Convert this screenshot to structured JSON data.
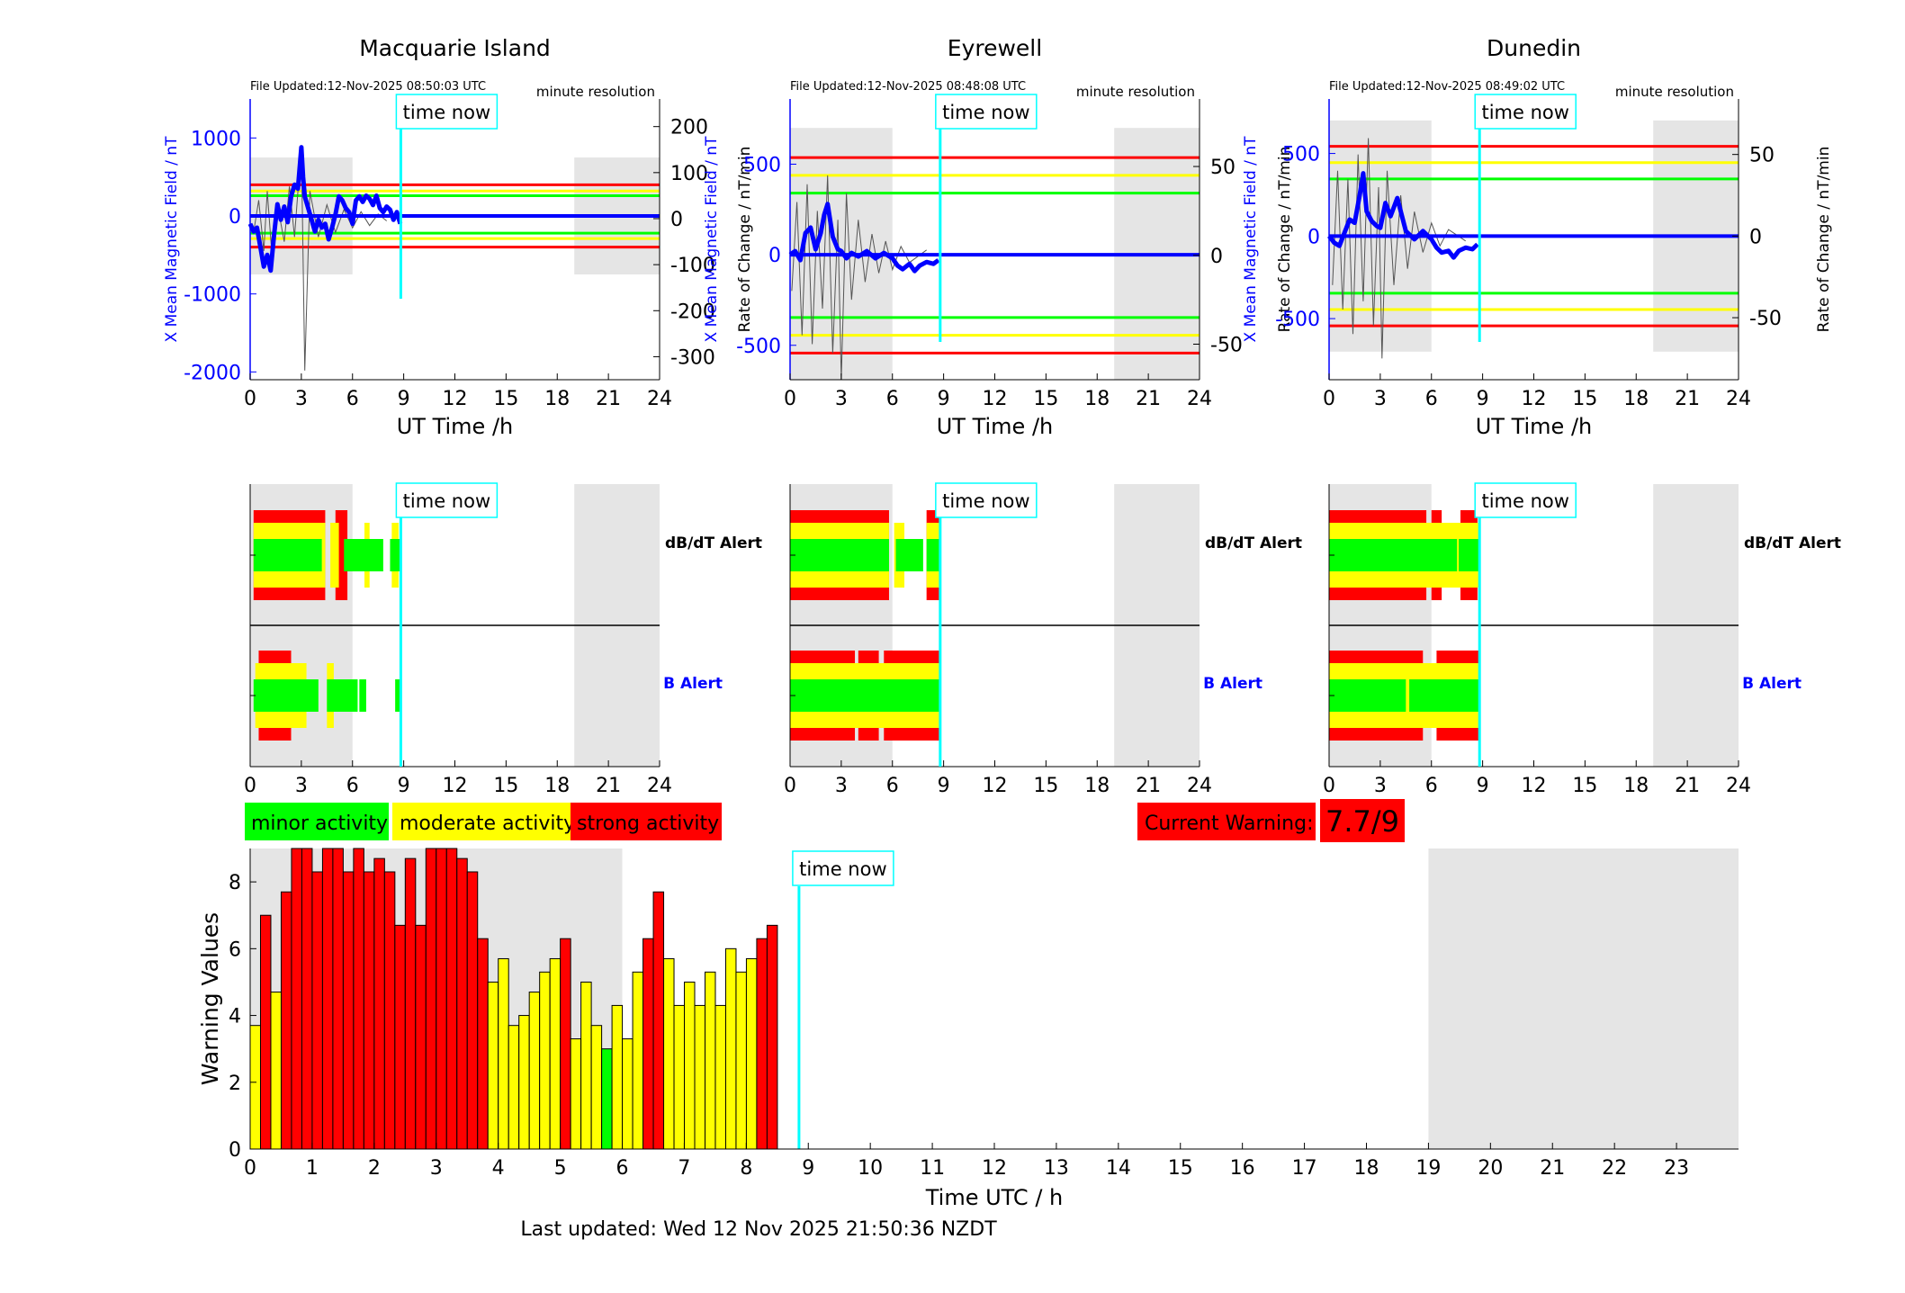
{
  "colors": {
    "minor": "#00ff00",
    "moderate": "#ffff00",
    "strong": "#ff0000",
    "time_now": "#00ffff",
    "mean_field": "#0000ff",
    "night": "#e5e5e5",
    "b_alert_label": "#0000ff"
  },
  "common": {
    "file_prefix": "File Updated:",
    "resolution": "minute resolution",
    "time_now_label": "time now",
    "xlabel": "UT Time /h",
    "left_ylabel": "X Mean Magnetic Field / nT",
    "right_ylabel": "Rate of Change / nT/min",
    "dbdt_alert": "dB/dT Alert",
    "b_alert": "B Alert",
    "hour_ticks": [
      "0",
      "3",
      "6",
      "9",
      "12",
      "15",
      "18",
      "21",
      "24"
    ]
  },
  "chart_data": [
    {
      "type": "line",
      "title": "Macquarie Island",
      "file_updated": "12-Nov-2025 08:50:03 UTC",
      "left_ticks": [
        "1000",
        "0",
        "-1000",
        "-2000"
      ],
      "left_tick_values": [
        1000,
        0,
        -1000,
        -2000
      ],
      "ylim_left": [
        -2100,
        1500
      ],
      "right_ticks": [
        "200",
        "100",
        "0",
        "-100",
        "-200",
        "-300"
      ],
      "right_tick_values": [
        200,
        100,
        0,
        -100,
        -200,
        -300
      ],
      "ylim_right": [
        -350,
        260
      ],
      "xlim": [
        0,
        24
      ],
      "night_bands": [
        [
          0,
          6
        ],
        [
          19,
          24
        ]
      ],
      "night_yrange_left": [
        -750,
        750
      ],
      "threshold_lines": [
        {
          "color": "#ff0000",
          "value": 400
        },
        {
          "color": "#ffff00",
          "value": 320
        },
        {
          "color": "#00ff00",
          "value": 260
        },
        {
          "color": "#00ff00",
          "value": -220
        },
        {
          "color": "#ffff00",
          "value": -290
        },
        {
          "color": "#ff0000",
          "value": -400
        }
      ],
      "mean_field_series": {
        "x": [
          0,
          0.2,
          0.4,
          0.6,
          0.8,
          1.0,
          1.2,
          1.4,
          1.6,
          1.8,
          2.0,
          2.2,
          2.4,
          2.6,
          2.8,
          3.0,
          3.1,
          3.2,
          3.4,
          3.6,
          3.8,
          4.0,
          4.2,
          4.4,
          4.6,
          4.8,
          5.0,
          5.2,
          5.4,
          5.6,
          5.8,
          6.0,
          6.2,
          6.4,
          6.6,
          6.8,
          7.0,
          7.2,
          7.4,
          7.6,
          7.8,
          8.0,
          8.2,
          8.4,
          8.6,
          8.8
        ],
        "y": [
          -100,
          -200,
          -150,
          -400,
          -650,
          -500,
          -700,
          -250,
          150,
          -50,
          120,
          -80,
          250,
          400,
          350,
          880,
          500,
          250,
          100,
          -50,
          -200,
          -50,
          -150,
          -100,
          -300,
          -150,
          20,
          250,
          200,
          100,
          50,
          -100,
          200,
          250,
          180,
          260,
          220,
          140,
          260,
          100,
          50,
          120,
          80,
          -50,
          50,
          -100
        ]
      },
      "rate_series": {
        "x": [
          0.2,
          0.5,
          0.8,
          1.0,
          1.3,
          1.6,
          2.0,
          2.3,
          2.6,
          3.0,
          3.2,
          3.5,
          4.0,
          4.5,
          5.0,
          5.5,
          6.0,
          6.5,
          7.0,
          7.5,
          8.0
        ],
        "y": [
          -30,
          40,
          -70,
          60,
          -90,
          30,
          -50,
          70,
          -40,
          160,
          -330,
          60,
          -40,
          30,
          -30,
          20,
          -20,
          15,
          -15,
          10,
          -5
        ]
      },
      "time_now_hour": 8.83
    },
    {
      "type": "line",
      "title": "Eyrewell",
      "file_updated": "12-Nov-2025 08:48:08 UTC",
      "left_ticks": [
        "500",
        "0",
        "-500"
      ],
      "left_tick_values": [
        500,
        0,
        -500
      ],
      "ylim_left": [
        -690,
        860
      ],
      "right_ticks": [
        "50",
        "0",
        "-50"
      ],
      "right_tick_values": [
        50,
        0,
        -50
      ],
      "ylim_right": [
        -70,
        88
      ],
      "xlim": [
        0,
        24
      ],
      "night_bands": [
        [
          0,
          6
        ],
        [
          19,
          24
        ]
      ],
      "night_yrange_left": [
        -690,
        700
      ],
      "threshold_lines": [
        {
          "color": "#ff0000",
          "value": 55
        },
        {
          "color": "#ffff00",
          "value": 45
        },
        {
          "color": "#00ff00",
          "value": 35
        },
        {
          "color": "#00ff00",
          "value": -35
        },
        {
          "color": "#ffff00",
          "value": -45
        },
        {
          "color": "#ff0000",
          "value": -55
        }
      ],
      "mean_field_series": {
        "x": [
          0,
          0.3,
          0.6,
          0.9,
          1.2,
          1.5,
          1.8,
          2.0,
          2.2,
          2.5,
          2.8,
          3.0,
          3.3,
          3.6,
          4.0,
          4.5,
          5.0,
          5.5,
          6.0,
          6.3,
          6.6,
          7.0,
          7.3,
          7.6,
          8.0,
          8.4,
          8.7
        ],
        "y": [
          0,
          20,
          -30,
          120,
          150,
          30,
          120,
          220,
          280,
          100,
          30,
          20,
          -20,
          10,
          -10,
          20,
          -20,
          10,
          -20,
          -60,
          -80,
          -50,
          -90,
          -60,
          -40,
          -50,
          -30
        ]
      },
      "rate_series": {
        "x": [
          0.1,
          0.4,
          0.7,
          1.0,
          1.3,
          1.6,
          1.9,
          2.2,
          2.5,
          2.8,
          3.0,
          3.3,
          3.6,
          4.0,
          4.4,
          4.8,
          5.2,
          5.6,
          6.0,
          6.5,
          7.0,
          8.0
        ],
        "y": [
          -20,
          30,
          -45,
          40,
          -50,
          25,
          -30,
          45,
          -55,
          20,
          -70,
          35,
          -25,
          20,
          -15,
          12,
          -10,
          8,
          -8,
          5,
          -4,
          3
        ]
      },
      "time_now_hour": 8.8
    },
    {
      "type": "line",
      "title": "Dunedin",
      "file_updated": "12-Nov-2025 08:49:02 UTC",
      "left_ticks": [
        "500",
        "0",
        "-500"
      ],
      "left_tick_values": [
        500,
        0,
        -500
      ],
      "ylim_left": [
        -870,
        830
      ],
      "right_ticks": [
        "50",
        "0",
        "-50"
      ],
      "right_tick_values": [
        50,
        0,
        -50
      ],
      "ylim_right": [
        -88,
        84
      ],
      "xlim": [
        0,
        24
      ],
      "night_bands": [
        [
          0,
          6
        ],
        [
          19,
          24
        ]
      ],
      "night_yrange_left": [
        -700,
        700
      ],
      "threshold_lines": [
        {
          "color": "#ff0000",
          "value": 55
        },
        {
          "color": "#ffff00",
          "value": 45
        },
        {
          "color": "#00ff00",
          "value": 35
        },
        {
          "color": "#00ff00",
          "value": -35
        },
        {
          "color": "#ffff00",
          "value": -45
        },
        {
          "color": "#ff0000",
          "value": -55
        }
      ],
      "mean_field_series": {
        "x": [
          0,
          0.3,
          0.6,
          0.9,
          1.2,
          1.5,
          1.8,
          2.0,
          2.2,
          2.5,
          2.8,
          3.0,
          3.3,
          3.6,
          4.0,
          4.5,
          5.0,
          5.5,
          6.0,
          6.3,
          6.6,
          7.0,
          7.3,
          7.6,
          8.0,
          8.4,
          8.7
        ],
        "y": [
          0,
          -40,
          -60,
          20,
          100,
          80,
          250,
          380,
          150,
          90,
          60,
          50,
          200,
          120,
          230,
          30,
          -20,
          30,
          -20,
          -70,
          -100,
          -90,
          -130,
          -90,
          -70,
          -80,
          -50
        ]
      },
      "rate_series": {
        "x": [
          0.2,
          0.5,
          0.8,
          1.1,
          1.4,
          1.7,
          2.0,
          2.3,
          2.6,
          2.9,
          3.1,
          3.4,
          3.8,
          4.2,
          4.6,
          5.0,
          5.5,
          6.0,
          6.5,
          7.0,
          8.0
        ],
        "y": [
          -30,
          40,
          -45,
          35,
          -60,
          50,
          -40,
          60,
          -55,
          30,
          -75,
          40,
          -30,
          25,
          -20,
          15,
          -10,
          8,
          -6,
          4,
          -3
        ]
      },
      "time_now_hour": 8.82
    },
    {
      "type": "bar",
      "title": "",
      "xlabel": "Time UTC / h",
      "ylabel": "Warning Values",
      "ylim": [
        0,
        9
      ],
      "xlim": [
        0,
        24
      ],
      "y_ticks": [
        "0",
        "2",
        "4",
        "6",
        "8"
      ],
      "y_tick_values": [
        0,
        2,
        4,
        6,
        8
      ],
      "x_ticks": [
        "0",
        "1",
        "2",
        "3",
        "4",
        "5",
        "6",
        "7",
        "8",
        "9",
        "10",
        "11",
        "12",
        "13",
        "14",
        "15",
        "16",
        "17",
        "18",
        "19",
        "20",
        "21",
        "22",
        "23"
      ],
      "bin_hours": 0.1667,
      "night_bands": [
        [
          0,
          6
        ],
        [
          19,
          24
        ]
      ],
      "values": [
        3.7,
        7.0,
        4.7,
        7.7,
        9,
        9,
        8.3,
        9,
        9,
        8.3,
        9,
        8.3,
        8.7,
        8.3,
        6.7,
        8.7,
        6.7,
        9,
        9,
        9,
        8.7,
        8.3,
        6.3,
        5.0,
        5.7,
        3.7,
        4.0,
        4.7,
        5.3,
        5.7,
        6.3,
        3.3,
        5.0,
        3.7,
        3.0,
        4.3,
        3.3,
        5.3,
        6.3,
        7.7,
        5.7,
        4.3,
        5.0,
        4.3,
        5.3,
        4.3,
        6.0,
        5.3,
        5.7,
        6.3,
        6.7
      ],
      "bar_colors": [
        "#ffff00",
        "#ff0000",
        "#ffff00",
        "#ff0000",
        "#ff0000",
        "#ff0000",
        "#ff0000",
        "#ff0000",
        "#ff0000",
        "#ff0000",
        "#ff0000",
        "#ff0000",
        "#ff0000",
        "#ff0000",
        "#ff0000",
        "#ff0000",
        "#ff0000",
        "#ff0000",
        "#ff0000",
        "#ff0000",
        "#ff0000",
        "#ff0000",
        "#ff0000",
        "#ffff00",
        "#ffff00",
        "#ffff00",
        "#ffff00",
        "#ffff00",
        "#ffff00",
        "#ffff00",
        "#ff0000",
        "#ffff00",
        "#ffff00",
        "#ffff00",
        "#00ff00",
        "#ffff00",
        "#ffff00",
        "#ffff00",
        "#ff0000",
        "#ff0000",
        "#ffff00",
        "#ffff00",
        "#ffff00",
        "#ffff00",
        "#ffff00",
        "#ffff00",
        "#ffff00",
        "#ffff00",
        "#ffff00",
        "#ff0000",
        "#ff0000"
      ],
      "time_now_hour": 8.85
    }
  ],
  "alerts": [
    {
      "station": "Macquarie Island",
      "dbdt_intervals": [
        [
          0.2,
          4.4,
          "strong"
        ],
        [
          0.2,
          4.4,
          "moderate"
        ],
        [
          0.2,
          4.2,
          "minor"
        ],
        [
          4.7,
          5.2,
          "moderate"
        ],
        [
          5.5,
          7.8,
          "minor"
        ],
        [
          5.0,
          5.7,
          "strong"
        ],
        [
          6.7,
          7.0,
          "moderate"
        ],
        [
          8.2,
          8.8,
          "minor"
        ],
        [
          8.3,
          8.7,
          "moderate"
        ]
      ],
      "b_intervals": [
        [
          0.5,
          2.4,
          "strong"
        ],
        [
          0.3,
          3.3,
          "moderate"
        ],
        [
          0.2,
          4.0,
          "minor"
        ],
        [
          4.5,
          4.9,
          "moderate"
        ],
        [
          4.5,
          6.3,
          "minor"
        ],
        [
          6.4,
          6.8,
          "minor"
        ],
        [
          8.5,
          8.8,
          "minor"
        ]
      ]
    },
    {
      "station": "Eyrewell",
      "dbdt_intervals": [
        [
          0,
          5.8,
          "strong"
        ],
        [
          0,
          5.8,
          "moderate"
        ],
        [
          0,
          5.8,
          "minor"
        ],
        [
          6.1,
          6.7,
          "moderate"
        ],
        [
          6.2,
          7.8,
          "minor"
        ],
        [
          8.0,
          8.8,
          "strong"
        ],
        [
          8.0,
          8.8,
          "moderate"
        ],
        [
          8.0,
          8.8,
          "minor"
        ]
      ],
      "b_intervals": [
        [
          0,
          3.8,
          "strong"
        ],
        [
          4.0,
          5.2,
          "strong"
        ],
        [
          5.5,
          8.8,
          "strong"
        ],
        [
          0,
          8.8,
          "moderate"
        ],
        [
          0,
          8.8,
          "minor"
        ]
      ]
    },
    {
      "station": "Dunedin",
      "dbdt_intervals": [
        [
          0,
          5.7,
          "strong"
        ],
        [
          0,
          8.8,
          "moderate"
        ],
        [
          0,
          7.5,
          "minor"
        ],
        [
          6.0,
          6.6,
          "strong"
        ],
        [
          7.7,
          8.7,
          "strong"
        ],
        [
          7.6,
          8.8,
          "minor"
        ]
      ],
      "b_intervals": [
        [
          0,
          5.5,
          "strong"
        ],
        [
          6.3,
          8.8,
          "strong"
        ],
        [
          0,
          8.8,
          "moderate"
        ],
        [
          0,
          4.5,
          "minor"
        ],
        [
          4.7,
          8.8,
          "minor"
        ]
      ]
    }
  ],
  "legend": {
    "minor": "minor activity",
    "moderate": "moderate activity",
    "strong": "strong activity"
  },
  "current_warning": {
    "label": "Current Warning:",
    "value": "7.7/9"
  },
  "footer": {
    "last_updated": "Last updated: Wed 12 Nov 2025 21:50:36 NZDT"
  }
}
